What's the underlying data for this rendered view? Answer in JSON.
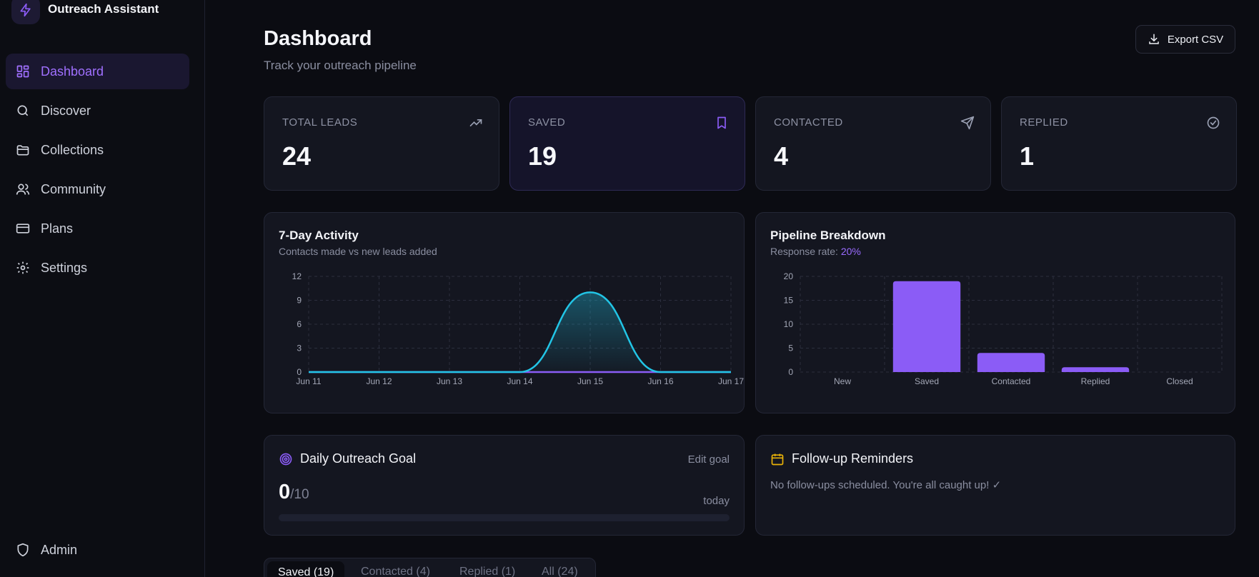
{
  "app": {
    "title": "Outreach Assistant"
  },
  "sidebar": {
    "items": [
      {
        "label": "Dashboard",
        "icon": "dashboard-icon",
        "active": true
      },
      {
        "label": "Discover",
        "icon": "search-icon"
      },
      {
        "label": "Collections",
        "icon": "folder-icon"
      },
      {
        "label": "Community",
        "icon": "users-icon"
      },
      {
        "label": "Plans",
        "icon": "credit-card-icon"
      },
      {
        "label": "Settings",
        "icon": "gear-icon"
      }
    ],
    "admin": {
      "label": "Admin",
      "icon": "shield-icon"
    }
  },
  "header": {
    "title": "Dashboard",
    "subtitle": "Track your outreach pipeline",
    "export_label": "Export CSV"
  },
  "stats": [
    {
      "label": "TOTAL LEADS",
      "value": "24",
      "icon": "trending-up-icon"
    },
    {
      "label": "SAVED",
      "value": "19",
      "icon": "bookmark-icon"
    },
    {
      "label": "CONTACTED",
      "value": "4",
      "icon": "send-icon"
    },
    {
      "label": "REPLIED",
      "value": "1",
      "icon": "check-circle-icon"
    }
  ],
  "activity": {
    "title": "7-Day Activity",
    "subtitle": "Contacts made vs new leads added"
  },
  "pipeline": {
    "title": "Pipeline Breakdown",
    "subtitle_prefix": "Response rate:",
    "response_rate": "20%"
  },
  "goal": {
    "title": "Daily Outreach Goal",
    "edit_label": "Edit goal",
    "current": "0",
    "target": "/10",
    "period": "today",
    "progress": 0
  },
  "reminders": {
    "title": "Follow-up Reminders",
    "empty_text": "No follow-ups scheduled. You're all caught up! ✓"
  },
  "tabs": [
    {
      "label": "Saved (19)",
      "active": true
    },
    {
      "label": "Contacted (4)"
    },
    {
      "label": "Replied (1)"
    },
    {
      "label": "All (24)"
    }
  ],
  "colors": {
    "accent": "#8b5cf6",
    "line_new": "#22c5e6",
    "line_contacts": "#8b5cf6",
    "background": "#0b0c12",
    "card": "#141620"
  },
  "chart_data": [
    {
      "type": "line",
      "x": [
        "Jun 11",
        "Jun 12",
        "Jun 13",
        "Jun 14",
        "Jun 15",
        "Jun 16",
        "Jun 17"
      ],
      "series": [
        {
          "values": [
            0,
            0,
            0,
            0,
            10,
            0,
            0
          ],
          "color": "#22c5e6"
        },
        {
          "values": [
            0,
            0,
            0,
            0,
            0,
            0,
            0
          ],
          "color": "#8b5cf6"
        }
      ],
      "yticks": [
        0,
        3,
        6,
        9,
        12
      ],
      "ylim": [
        0,
        12
      ],
      "grid": true
    },
    {
      "type": "bar",
      "categories": [
        "New",
        "Saved",
        "Contacted",
        "Replied",
        "Closed"
      ],
      "values": [
        0,
        19,
        4,
        1,
        0
      ],
      "yticks": [
        0,
        5,
        10,
        15,
        20
      ],
      "ylim": [
        0,
        20
      ],
      "grid": true,
      "color": "#8b5cf6"
    }
  ]
}
